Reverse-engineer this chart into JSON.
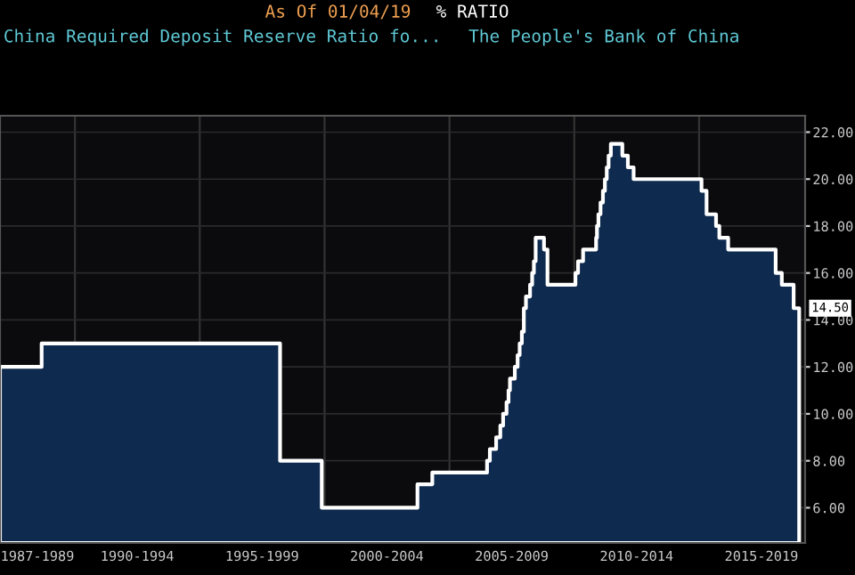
{
  "chart_data": {
    "type": "area",
    "title": "China Required Deposit Reserve Ratio fo...",
    "subtitle": "The People's Bank of China",
    "annotations": [
      "As Of 01/04/19",
      "% RATIO",
      {
        "text": "14.50",
        "x": "2019-01-04",
        "y": 14.5
      }
    ],
    "series": [
      {
        "color": "#0e2a4e",
        "x": [
          "1987-01-01",
          "1988-09-01",
          "1998-03-21",
          "1999-11-21",
          "2003-09-21",
          "2004-04-25",
          "2006-07-05",
          "2006-08-15",
          "2006-11-15",
          "2007-01-15",
          "2007-02-25",
          "2007-04-16",
          "2007-05-15",
          "2007-06-05",
          "2007-08-15",
          "2007-09-25",
          "2007-10-25",
          "2007-11-26",
          "2007-12-25",
          "2008-01-25",
          "2008-03-25",
          "2008-04-25",
          "2008-05-20",
          "2008-06-15",
          "2008-10-15",
          "2008-12-05",
          "2010-01-18",
          "2010-02-25",
          "2010-05-10",
          "2010-11-16",
          "2010-11-29",
          "2010-12-20",
          "2011-01-20",
          "2011-02-24",
          "2011-03-25",
          "2011-04-21",
          "2011-05-18",
          "2011-06-20",
          "2011-12-05",
          "2012-02-24",
          "2012-05-18",
          "2015-02-05",
          "2015-04-20",
          "2015-09-06",
          "2015-10-24",
          "2016-03-01",
          "2018-01-25",
          "2018-04-25",
          "2018-10-15",
          "2019-01-04"
        ],
        "values": [
          12,
          13,
          8,
          6,
          7,
          7.5,
          8,
          8.5,
          9,
          9.5,
          10,
          10.5,
          11,
          11.5,
          12,
          12.5,
          13,
          13.5,
          14.5,
          15,
          15.5,
          16,
          16.5,
          17.5,
          17,
          15.5,
          16,
          16.5,
          17,
          17.5,
          18,
          18.5,
          19,
          19.5,
          20,
          20.5,
          21,
          21.5,
          21,
          20.5,
          20,
          19.5,
          18.5,
          18,
          17.5,
          17,
          16,
          15.5,
          14.5,
          14.5
        ]
      }
    ],
    "xlim": [
      "1987-01-01",
      "2019-04-01"
    ],
    "xticks": [
      {
        "value": "1988-07-01",
        "label": "1987-1989"
      },
      {
        "value": "1990-01-01",
        "label": null
      },
      {
        "value": "1992-07-01",
        "label": "1990-1994"
      },
      {
        "value": "1995-01-01",
        "label": null
      },
      {
        "value": "1997-07-01",
        "label": "1995-1999"
      },
      {
        "value": "2000-01-01",
        "label": null
      },
      {
        "value": "2002-07-01",
        "label": "2000-2004"
      },
      {
        "value": "2005-01-01",
        "label": null
      },
      {
        "value": "2007-07-01",
        "label": "2005-2009"
      },
      {
        "value": "2010-01-01",
        "label": null
      },
      {
        "value": "2012-07-01",
        "label": "2010-2014"
      },
      {
        "value": "2015-01-01",
        "label": null
      },
      {
        "value": "2017-07-01",
        "label": "2015-2019"
      }
    ],
    "ylim": [
      4.5,
      22.7
    ],
    "yticks": [
      {
        "value": 6,
        "label": "6.00"
      },
      {
        "value": 8,
        "label": "8.00"
      },
      {
        "value": 10,
        "label": "10.00"
      },
      {
        "value": 12,
        "label": "12.00"
      },
      {
        "value": 14,
        "label": "14.00"
      },
      {
        "value": 16,
        "label": "16.00"
      },
      {
        "value": 18,
        "label": "18.00"
      },
      {
        "value": 20,
        "label": "20.00"
      },
      {
        "value": 22,
        "label": "22.00"
      }
    ],
    "grid": true
  }
}
